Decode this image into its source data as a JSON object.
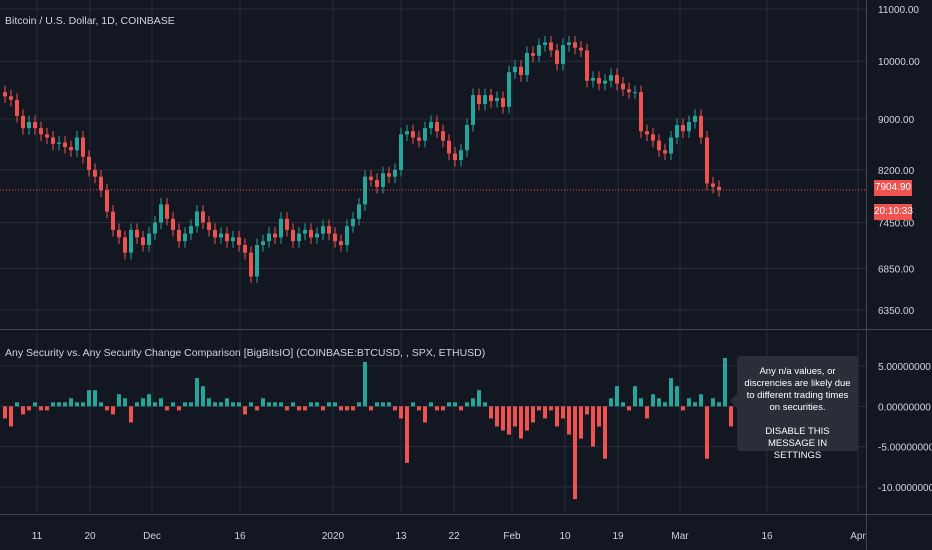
{
  "chart_data": [
    {
      "type": "candlestick",
      "title": "Bitcoin / U.S. Dollar, 1D, COINBASE",
      "x_tick_labels": [
        "11",
        "20",
        "Dec",
        "16",
        "2020",
        "13",
        "22",
        "Feb",
        "10",
        "19",
        "Mar",
        "16",
        "Apr"
      ],
      "y_tick_labels": [
        "11000.00",
        "10000.00",
        "9000.00",
        "8200.00",
        "7450.00",
        "6850.00",
        "6350.00"
      ],
      "ylim": [
        6200,
        11100
      ],
      "y_scale": "log",
      "last_price_label": "7904.90",
      "countdown_label": "20:10:33",
      "colors": {
        "up": "#26a69a",
        "down": "#ef5350"
      },
      "close": [
        9380,
        9320,
        9050,
        8850,
        8950,
        8850,
        8750,
        8700,
        8600,
        8620,
        8550,
        8500,
        8700,
        8400,
        8200,
        8100,
        7900,
        7600,
        7350,
        7250,
        7050,
        7350,
        7250,
        7150,
        7300,
        7450,
        7700,
        7500,
        7350,
        7200,
        7300,
        7400,
        7600,
        7450,
        7350,
        7250,
        7300,
        7200,
        7250,
        7150,
        7050,
        6750,
        7150,
        7200,
        7300,
        7250,
        7500,
        7350,
        7200,
        7300,
        7350,
        7250,
        7300,
        7400,
        7300,
        7200,
        7150,
        7400,
        7500,
        7700,
        8100,
        8050,
        7950,
        8150,
        8100,
        8200,
        8750,
        8800,
        8700,
        8650,
        8850,
        8950,
        8800,
        8650,
        8450,
        8350,
        8500,
        8900,
        9400,
        9250,
        9400,
        9300,
        9350,
        9200,
        9800,
        9900,
        9750,
        10150,
        10100,
        10300,
        10350,
        10200,
        9950,
        10300,
        10350,
        10250,
        10200,
        9650,
        9700,
        9600,
        9650,
        9750,
        9600,
        9500,
        9450,
        9450,
        8800,
        8750,
        8650,
        8500,
        8450,
        8700,
        8900,
        8800,
        8950,
        9050,
        8700,
        8000,
        7950,
        7904.9
      ]
    },
    {
      "type": "bar",
      "title": "Any Security vs. Any Security Change Comparison [BigBitsIO] (COINBASE:BTCUSD, , SPX, ETHUSD)",
      "y_tick_labels": [
        "5.00000000",
        "0.00000000",
        "-5.00000000",
        "-10.00000000"
      ],
      "ylim": [
        -11.5,
        6.5
      ],
      "colors": {
        "positive": "#26a69a",
        "negative": "#ef5350"
      },
      "values": [
        -1.5,
        -2.5,
        0.5,
        -1.0,
        -0.5,
        0.5,
        -0.5,
        -0.5,
        0.5,
        0.5,
        0.5,
        1.0,
        0.5,
        0.5,
        2.0,
        2.0,
        0.5,
        -0.5,
        -1.0,
        1.5,
        1.0,
        -2.0,
        0.5,
        1.0,
        1.5,
        0.5,
        1.0,
        -0.5,
        0.5,
        -0.5,
        0.5,
        0.5,
        3.5,
        2.5,
        1.0,
        0.5,
        0.5,
        1.0,
        0.5,
        0.5,
        -1.0,
        0.5,
        -0.5,
        1.0,
        0.5,
        0.5,
        0.5,
        -0.5,
        0.5,
        -0.5,
        -0.5,
        0.5,
        0.5,
        -0.5,
        0.5,
        0.5,
        -0.5,
        -0.5,
        -0.5,
        0.5,
        5.5,
        -0.5,
        0.5,
        0.5,
        0.5,
        -0.5,
        -1.5,
        -7.0,
        0.5,
        -0.5,
        -2.0,
        0.5,
        -0.5,
        -0.5,
        0.5,
        0.5,
        -0.5,
        0.5,
        1.0,
        2.0,
        0.5,
        -1.5,
        -2.5,
        -3.0,
        -3.5,
        -2.5,
        -4.0,
        -3.0,
        -2.0,
        -0.5,
        -1.5,
        -0.5,
        -2.5,
        -1.5,
        -3.5,
        -11.5,
        -4.0,
        -1.0,
        -5.0,
        -2.5,
        -6.5,
        1.0,
        2.5,
        0.5,
        -0.5,
        2.5,
        1.0,
        -1.5,
        1.5,
        1.0,
        0.5,
        3.5,
        2.5,
        -0.5,
        1.0,
        0.5,
        1.5,
        -6.5,
        1.0,
        0.5,
        6.0,
        -2.5
      ]
    }
  ],
  "tooltip": {
    "message": "Any n/a values, or discrencies are likely due to different trading times on securities.",
    "action": "DISABLE THIS MESSAGE IN SETTINGS"
  }
}
